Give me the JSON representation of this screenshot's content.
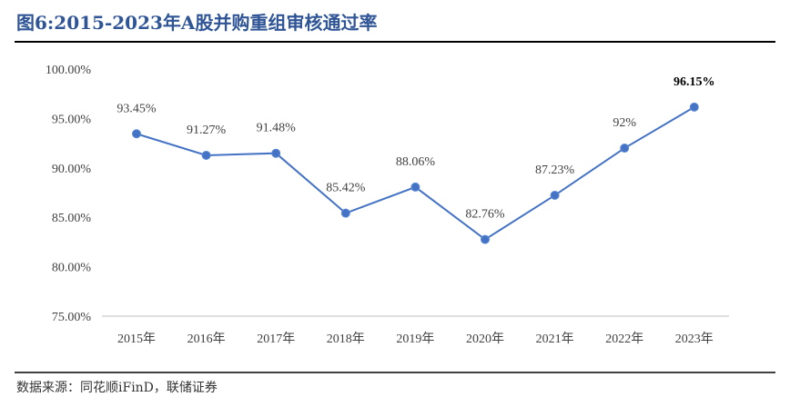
{
  "title": "图6:2015-2023年A股并购重组审核通过率",
  "source": "数据来源：同花顺iFinD，联储证券",
  "chart_data": {
    "type": "line",
    "title": "图6:2015-2023年A股并购重组审核通过率",
    "xlabel": "",
    "ylabel": "",
    "categories": [
      "2015年",
      "2016年",
      "2017年",
      "2018年",
      "2019年",
      "2020年",
      "2021年",
      "2022年",
      "2023年"
    ],
    "series": [
      {
        "values": [
          93.45,
          91.27,
          91.48,
          85.42,
          88.06,
          82.76,
          87.23,
          92,
          96.15
        ],
        "data_labels": [
          "93.45%",
          "91.27%",
          "91.48%",
          "85.42%",
          "88.06%",
          "82.76%",
          "87.23%",
          "92%",
          "96.15%"
        ],
        "color": "#4472C4"
      }
    ],
    "ylim": [
      75,
      100
    ],
    "yticks": [
      {
        "value": 100,
        "label": "100.00%"
      },
      {
        "value": 95,
        "label": "95.00%"
      },
      {
        "value": 90,
        "label": "90.00%"
      },
      {
        "value": 85,
        "label": "85.00%"
      },
      {
        "value": 80,
        "label": "80.00%"
      },
      {
        "value": 75,
        "label": "75.00%"
      }
    ],
    "grid": false,
    "legend": "none"
  },
  "colors": {
    "title": "#2F5597",
    "series": "#4472C4",
    "axis": "#BFBFBF",
    "rule": "#000000"
  }
}
